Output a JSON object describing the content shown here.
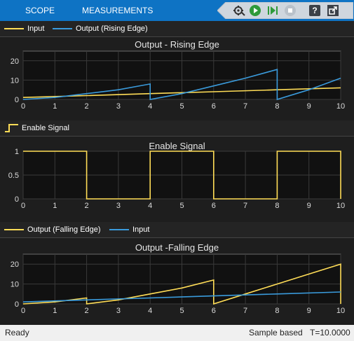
{
  "toolbar": {
    "tabs": [
      "SCOPE",
      "MEASUREMENTS"
    ],
    "buttons": [
      "settings-icon",
      "run-icon",
      "step-forward-icon",
      "stop-icon",
      "help-icon",
      "undock-icon"
    ]
  },
  "colors": {
    "yellow": "#ffdd57",
    "blue": "#3a9bdc",
    "axes_bg": "#111111",
    "grid": "#3a3a3a"
  },
  "legends": {
    "top": [
      {
        "label": "Input",
        "color": "#ffdd57"
      },
      {
        "label": "Output (Rising Edge)",
        "color": "#3a9bdc"
      }
    ],
    "middle": [
      {
        "label": "Enable Signal",
        "color": "#ffdd57"
      }
    ],
    "bottom": [
      {
        "label": "Output (Falling Edge)",
        "color": "#ffdd57"
      },
      {
        "label": "Input",
        "color": "#3a9bdc"
      }
    ]
  },
  "chart_data": [
    {
      "type": "line",
      "title": "Output - Rising Edge",
      "xlim": [
        0,
        10
      ],
      "ylim": [
        0,
        25
      ],
      "xticks": [
        0,
        1,
        2,
        3,
        4,
        5,
        6,
        7,
        8,
        9,
        10
      ],
      "yticks": [
        0,
        10,
        20
      ],
      "series": [
        {
          "name": "Input",
          "color": "#ffdd57",
          "x": [
            0,
            2,
            4,
            6,
            8,
            10
          ],
          "y": [
            1,
            2,
            3,
            4,
            5,
            6
          ]
        },
        {
          "name": "Output (Rising Edge)",
          "color": "#3a9bdc",
          "x": [
            0,
            1,
            2,
            3,
            4,
            4,
            5,
            6,
            7,
            8,
            8,
            9,
            10
          ],
          "y": [
            0,
            1,
            3,
            5,
            8,
            0,
            3,
            7,
            11,
            15.5,
            0,
            5,
            11
          ]
        }
      ]
    },
    {
      "type": "line",
      "title": "Enable Signal",
      "xlim": [
        0,
        10
      ],
      "ylim": [
        0,
        1
      ],
      "xticks": [
        0,
        1,
        2,
        3,
        4,
        5,
        6,
        7,
        8,
        9,
        10
      ],
      "yticks": [
        0,
        0.5,
        1
      ],
      "series": [
        {
          "name": "Enable Signal",
          "color": "#ffdd57",
          "x": [
            0,
            2,
            2,
            4,
            4,
            6,
            6,
            8,
            8,
            10,
            10
          ],
          "y": [
            1,
            1,
            0,
            0,
            1,
            1,
            0,
            0,
            1,
            1,
            0
          ]
        }
      ]
    },
    {
      "type": "line",
      "title": "Output -Falling Edge",
      "xlim": [
        0,
        10
      ],
      "ylim": [
        0,
        25
      ],
      "xticks": [
        0,
        1,
        2,
        3,
        4,
        5,
        6,
        7,
        8,
        9,
        10
      ],
      "yticks": [
        0,
        10,
        20
      ],
      "series": [
        {
          "name": "Output (Falling Edge)",
          "color": "#ffdd57",
          "x": [
            0,
            1,
            2,
            2,
            3,
            4,
            5,
            6,
            6,
            7,
            8,
            9,
            10,
            10
          ],
          "y": [
            0,
            1,
            3,
            0,
            2,
            5,
            8,
            12,
            0,
            5,
            10,
            15,
            20,
            0
          ]
        },
        {
          "name": "Input",
          "color": "#3a9bdc",
          "x": [
            0,
            2,
            4,
            6,
            8,
            10
          ],
          "y": [
            1,
            2,
            3,
            4,
            5,
            6
          ]
        }
      ]
    }
  ],
  "status": {
    "left": "Ready",
    "mode": "Sample based",
    "time": "T=10.0000"
  }
}
